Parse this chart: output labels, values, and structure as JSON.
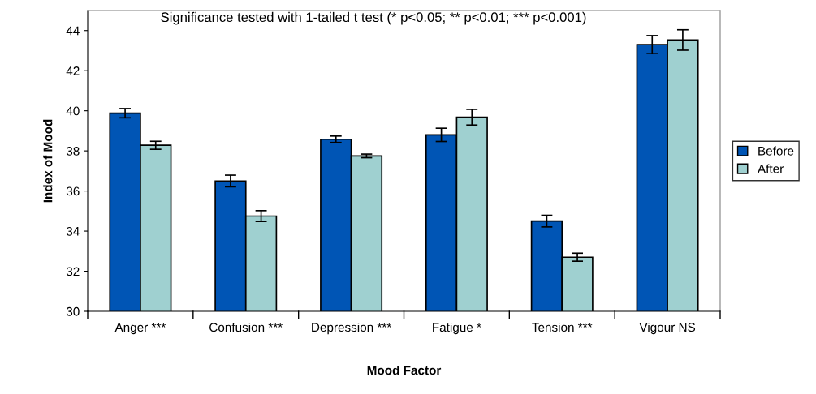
{
  "chart_data": {
    "type": "bar",
    "xlabel": "Mood Factor",
    "ylabel": "Index of Mood",
    "categories": [
      "Anger ***",
      "Confusion ***",
      "Depression ***",
      "Fatigue *",
      "Tension ***",
      "Vigour NS"
    ],
    "series": [
      {
        "name": "Before",
        "color": "#0055b5",
        "values": [
          39.88,
          36.5,
          38.58,
          38.8,
          34.5,
          43.3
        ],
        "errors": [
          0.23,
          0.29,
          0.16,
          0.33,
          0.29,
          0.45
        ]
      },
      {
        "name": "After",
        "color": "#9fd0d0",
        "values": [
          38.28,
          34.75,
          37.75,
          39.68,
          32.7,
          43.53
        ],
        "errors": [
          0.2,
          0.27,
          0.09,
          0.39,
          0.2,
          0.51
        ]
      }
    ],
    "ylim": [
      30,
      45
    ],
    "yticks": [
      30,
      32,
      34,
      36,
      38,
      40,
      42,
      44
    ],
    "grid": false,
    "legend": "right",
    "annotations": [
      "Significance tested with 1-tailed t test (* p<0.05; ** p<0.01; *** p<0.001)"
    ]
  }
}
